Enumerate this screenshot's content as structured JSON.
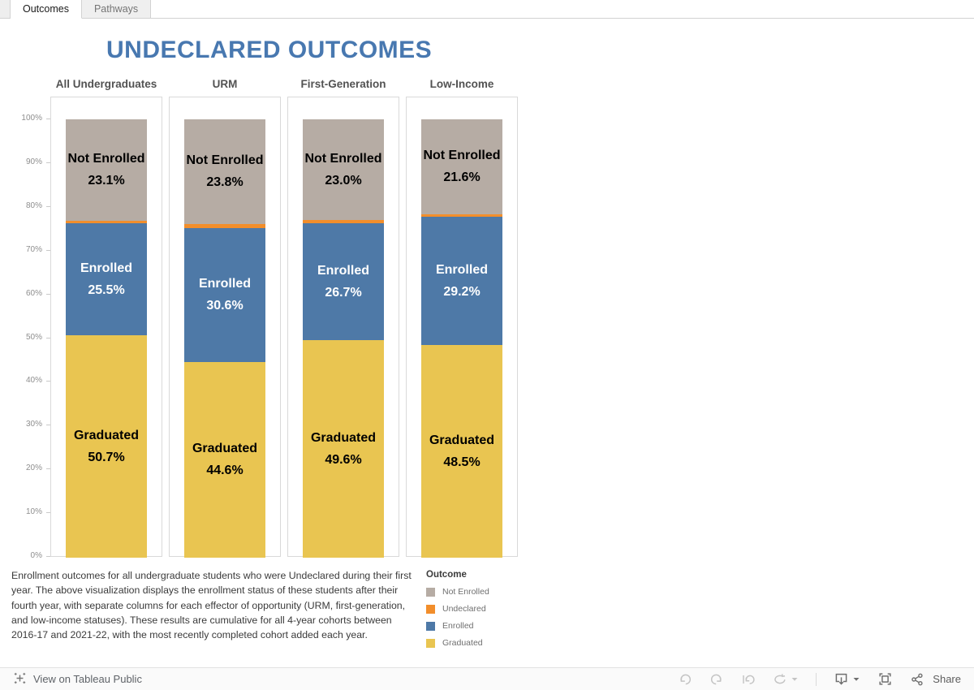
{
  "tabs": [
    {
      "label": "Outcomes",
      "active": true
    },
    {
      "label": "Pathways",
      "active": false
    }
  ],
  "title": "UNDECLARED OUTCOMES",
  "chart_data": {
    "type": "bar",
    "stacked": true,
    "title": "UNDECLARED OUTCOMES",
    "categories": [
      "All Undergraduates",
      "URM",
      "First-Generation",
      "Low-Income"
    ],
    "series": [
      {
        "name": "Not Enrolled",
        "color": "#b6aca4",
        "show_label": true,
        "label_color": "#000000",
        "values": [
          23.1,
          23.8,
          23.0,
          21.6
        ]
      },
      {
        "name": "Undeclared",
        "color": "#f28e2b",
        "show_label": false,
        "label_color": "#000000",
        "values": [
          0.7,
          1.0,
          0.7,
          0.7
        ]
      },
      {
        "name": "Enrolled",
        "color": "#4e79a7",
        "show_label": true,
        "label_color": "#ffffff",
        "values": [
          25.5,
          30.6,
          26.7,
          29.2
        ]
      },
      {
        "name": "Graduated",
        "color": "#e9c551",
        "show_label": true,
        "label_color": "#000000",
        "values": [
          50.7,
          44.6,
          49.6,
          48.5
        ]
      }
    ],
    "ylim": [
      0,
      100
    ],
    "yticks": [
      "100%",
      "90%",
      "80%",
      "70%",
      "60%",
      "50%",
      "40%",
      "30%",
      "20%",
      "10%",
      "0%"
    ],
    "grid": false,
    "legend_position": "bottom-right"
  },
  "legend": {
    "title": "Outcome",
    "items": [
      {
        "label": "Not Enrolled",
        "color": "#b6aca4"
      },
      {
        "label": "Undeclared",
        "color": "#f28e2b"
      },
      {
        "label": "Enrolled",
        "color": "#4e79a7"
      },
      {
        "label": "Graduated",
        "color": "#e9c551"
      }
    ]
  },
  "caption": "Enrollment outcomes for all undergraduate students who were Undeclared during their first year. The above visualization displays the enrollment status of these students after their fourth year, with separate columns for each effector of opportunity (URM, first-generation, and low-income statuses). These results are cumulative for all 4-year cohorts between 2016-17 and 2021-22, with the most recently completed cohort added each year.",
  "toolbar": {
    "view_on_label": "View on Tableau Public",
    "share_label": "Share"
  },
  "colors": {
    "title": "#4878b0",
    "accent_blue": "#4e79a7",
    "accent_orange": "#f28e2b",
    "accent_yellow": "#e9c551",
    "accent_taupe": "#b6aca4"
  }
}
